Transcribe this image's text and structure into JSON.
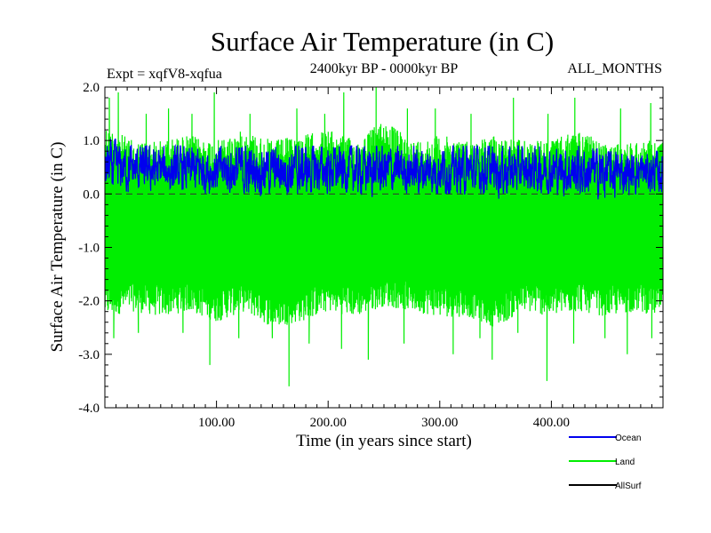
{
  "chart_data": {
    "type": "line",
    "title": "Surface Air Temperature (in C)",
    "subtitle": "2400kyr BP - 0000kyr BP",
    "left_label": "Expt = xqfV8-xqfua",
    "right_label": "ALL_MONTHS",
    "xlabel": "Time (in years since start)",
    "ylabel": "Surface Air Temperature (in C)",
    "xlim": [
      0,
      500
    ],
    "ylim": [
      -4.0,
      2.0
    ],
    "x_ticks": [
      100,
      200,
      300,
      400
    ],
    "x_tick_labels": [
      "100.00",
      "200.00",
      "300.00",
      "400.00"
    ],
    "y_ticks": [
      -4,
      -3,
      -2,
      -1,
      0,
      1,
      2
    ],
    "y_tick_labels": [
      "-4.0",
      "-3.0",
      "-2.0",
      "-1.0",
      "0.0",
      "1.0",
      "2.0"
    ],
    "zero_line": true,
    "series": [
      {
        "name": "Land",
        "color": "#00ee00",
        "n_points": 2400,
        "upper_envelope": {
          "x": [
            0,
            25,
            50,
            75,
            100,
            125,
            150,
            175,
            200,
            225,
            250,
            275,
            300,
            325,
            350,
            375,
            400,
            425,
            450,
            475,
            500
          ],
          "y": [
            1.3,
            1.0,
            1.0,
            1.1,
            1.0,
            1.2,
            1.0,
            1.1,
            1.2,
            1.0,
            1.4,
            1.0,
            1.1,
            1.0,
            1.1,
            1.0,
            1.0,
            1.2,
            0.9,
            1.0,
            1.0
          ]
        },
        "lower_envelope": {
          "x": [
            0,
            25,
            50,
            75,
            100,
            125,
            150,
            175,
            200,
            225,
            250,
            275,
            300,
            325,
            350,
            375,
            400,
            425,
            450,
            475,
            500
          ],
          "y": [
            -2.3,
            -2.2,
            -2.3,
            -2.2,
            -2.4,
            -2.2,
            -2.5,
            -2.4,
            -2.2,
            -2.3,
            -2.1,
            -2.2,
            -2.3,
            -2.3,
            -2.5,
            -2.2,
            -2.3,
            -2.2,
            -2.3,
            -2.2,
            -2.3
          ]
        },
        "spikes": [
          {
            "x": 4,
            "y": 1.8
          },
          {
            "x": 12,
            "y": 1.9
          },
          {
            "x": 37,
            "y": 1.5
          },
          {
            "x": 57,
            "y": 1.6
          },
          {
            "x": 78,
            "y": 1.5
          },
          {
            "x": 98,
            "y": 1.9
          },
          {
            "x": 130,
            "y": 1.5
          },
          {
            "x": 172,
            "y": 1.6
          },
          {
            "x": 197,
            "y": 1.5
          },
          {
            "x": 214,
            "y": 1.9
          },
          {
            "x": 243,
            "y": 2.0
          },
          {
            "x": 271,
            "y": 1.6
          },
          {
            "x": 296,
            "y": 1.6
          },
          {
            "x": 328,
            "y": 1.5
          },
          {
            "x": 366,
            "y": 1.8
          },
          {
            "x": 397,
            "y": 1.5
          },
          {
            "x": 421,
            "y": 1.8
          },
          {
            "x": 462,
            "y": 1.6
          },
          {
            "x": 489,
            "y": 1.7
          },
          {
            "x": 8,
            "y": -2.7
          },
          {
            "x": 30,
            "y": -2.6
          },
          {
            "x": 70,
            "y": -2.6
          },
          {
            "x": 94,
            "y": -3.2
          },
          {
            "x": 120,
            "y": -2.7
          },
          {
            "x": 150,
            "y": -2.7
          },
          {
            "x": 165,
            "y": -3.6
          },
          {
            "x": 183,
            "y": -2.8
          },
          {
            "x": 212,
            "y": -2.9
          },
          {
            "x": 236,
            "y": -3.1
          },
          {
            "x": 268,
            "y": -2.8
          },
          {
            "x": 312,
            "y": -3.0
          },
          {
            "x": 336,
            "y": -2.7
          },
          {
            "x": 347,
            "y": -3.1
          },
          {
            "x": 370,
            "y": -2.6
          },
          {
            "x": 396,
            "y": -3.5
          },
          {
            "x": 420,
            "y": -2.8
          },
          {
            "x": 448,
            "y": -2.7
          },
          {
            "x": 468,
            "y": -3.0
          },
          {
            "x": 490,
            "y": -2.7
          }
        ]
      },
      {
        "name": "Ocean",
        "color": "#0000ee",
        "n_points": 2400,
        "mean": {
          "x": [
            0,
            50,
            100,
            150,
            200,
            250,
            300,
            350,
            400,
            450,
            500
          ],
          "y": [
            0.5,
            0.45,
            0.45,
            0.45,
            0.45,
            0.45,
            0.45,
            0.45,
            0.45,
            0.4,
            0.4
          ]
        },
        "upper_envelope": {
          "x": [
            0,
            25,
            50,
            75,
            100,
            125,
            150,
            175,
            200,
            225,
            250,
            275,
            300,
            325,
            350,
            375,
            400,
            425,
            450,
            475,
            500
          ],
          "y": [
            1.2,
            0.9,
            0.9,
            0.9,
            0.9,
            0.9,
            0.9,
            0.9,
            0.9,
            0.9,
            0.9,
            0.9,
            0.9,
            0.9,
            0.9,
            0.9,
            0.9,
            0.9,
            0.8,
            0.8,
            0.8
          ]
        },
        "lower_envelope": {
          "x": [
            0,
            25,
            50,
            75,
            100,
            125,
            150,
            175,
            200,
            225,
            250,
            275,
            300,
            325,
            350,
            375,
            400,
            425,
            450,
            475,
            500
          ],
          "y": [
            0.2,
            0.0,
            0.0,
            0.0,
            0.0,
            -0.1,
            0.0,
            -0.1,
            0.0,
            0.0,
            -0.1,
            0.0,
            0.0,
            0.0,
            -0.1,
            0.0,
            0.0,
            -0.1,
            -0.2,
            0.0,
            0.0
          ]
        }
      },
      {
        "name": "AllSurf",
        "color": "#000000",
        "n_points": 0
      }
    ],
    "legend_placement": "bottom-right"
  }
}
